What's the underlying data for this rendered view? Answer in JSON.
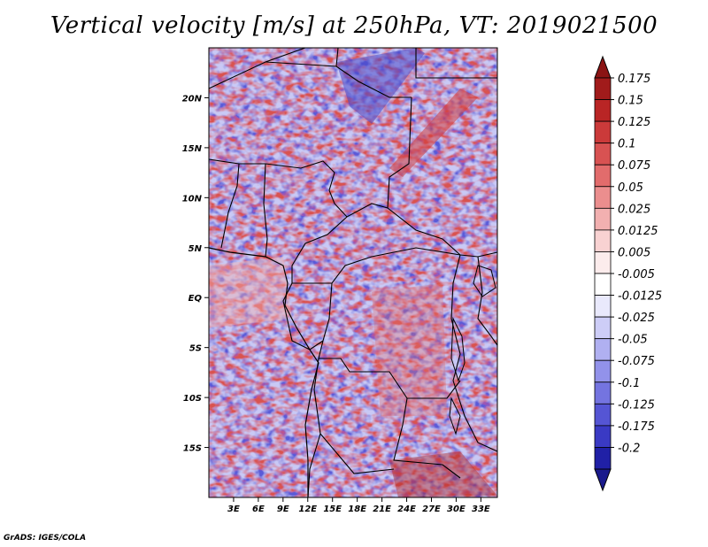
{
  "title": "Vertical velocity [m/s] at 250hPa, VT: 2019021500",
  "footer": "GrADS: IGES/COLA",
  "axes": {
    "lon_range": [
      0,
      35
    ],
    "lat_range": [
      -20,
      25
    ],
    "x_ticks": [
      "3E",
      "6E",
      "9E",
      "12E",
      "15E",
      "18E",
      "21E",
      "24E",
      "27E",
      "30E",
      "33E"
    ],
    "y_ticks": [
      "20N",
      "15N",
      "10N",
      "5N",
      "EQ",
      "5S",
      "10S",
      "15S"
    ]
  },
  "colorbar": {
    "labels": [
      "0.175",
      "0.15",
      "0.125",
      "0.1",
      "0.075",
      "0.05",
      "0.025",
      "0.0125",
      "0.005",
      "-0.005",
      "-0.0125",
      "-0.025",
      "-0.05",
      "-0.075",
      "-0.1",
      "-0.125",
      "-0.175",
      "-0.2"
    ],
    "colors": [
      "#a11b1b",
      "#b92525",
      "#cb3a3a",
      "#d85252",
      "#e26c6c",
      "#eb8e8e",
      "#f2b0b0",
      "#f8d2d2",
      "#fcecec",
      "#ffffff",
      "#e9e9fc",
      "#cdcdf7",
      "#b0b0f1",
      "#9292ea",
      "#7474e0",
      "#5555d4",
      "#3a3ac4",
      "#2020a6"
    ],
    "top_arrow_color": "#8b1414",
    "bottom_arrow_color": "#1a1a8c"
  }
}
